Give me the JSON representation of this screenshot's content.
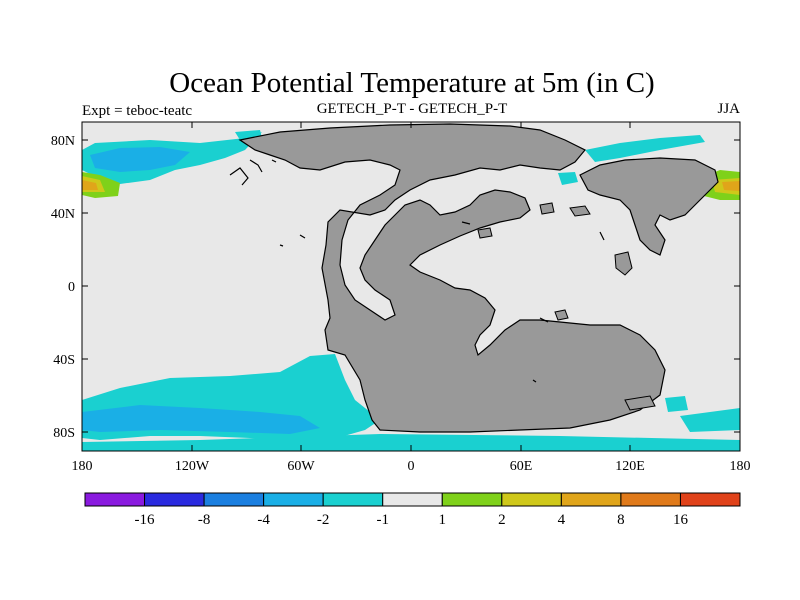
{
  "title": "Ocean Potential Temperature at 5m (in C)",
  "subtitle_left": "Expt = teboc-teatc",
  "subtitle_center": "GETECH_P-T - GETECH_P-T",
  "subtitle_right": "JJA",
  "lat_ticks": [
    "80N",
    "40N",
    "0",
    "40S",
    "80S"
  ],
  "lon_ticks": [
    "180",
    "120W",
    "60W",
    "0",
    "60E",
    "120E",
    "180"
  ],
  "colorbar": {
    "colors": [
      "#8a1adf",
      "#2a2adf",
      "#1b7fe0",
      "#1aafe6",
      "#1ad0d0",
      "#e8e8e8",
      "#7fd11a",
      "#cfc81a",
      "#e0a51a",
      "#e07a1a",
      "#e0421a"
    ],
    "labels": [
      "-16",
      "-8",
      "-4",
      "-2",
      "-1",
      "1",
      "2",
      "4",
      "8",
      "16"
    ]
  },
  "map_colors": {
    "ocean_neutral": "#e8e8e8",
    "land": "#999999",
    "cool_small": "#1ad0d0",
    "cool_medium": "#1aafe6",
    "warm_2": "#7fd11a",
    "warm_4": "#cfc81a",
    "warm_8": "#e0a51a",
    "warm_16": "#e07a1a"
  }
}
